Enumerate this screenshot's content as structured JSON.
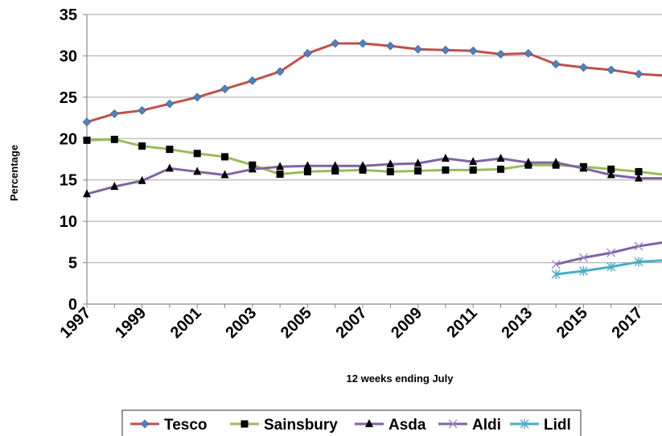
{
  "chart_data": {
    "type": "line",
    "xlabel": "12 weeks ending July",
    "ylabel": "Percentage",
    "ylim": [
      0,
      35
    ],
    "yticks": [
      "0",
      "5",
      "10",
      "15",
      "20",
      "25",
      "30",
      "35"
    ],
    "xticks": [
      "1997",
      "1999",
      "2001",
      "2003",
      "2005",
      "2007",
      "2009",
      "2011",
      "2013",
      "2015",
      "2017"
    ],
    "grid": "horizontal",
    "legend_position": "bottom",
    "series": [
      {
        "name": "Tesco",
        "color": "#c0504d",
        "marker": "diamond",
        "marker_color": "#4f81bd",
        "points": [
          [
            1997,
            22.0
          ],
          [
            1998,
            23.0
          ],
          [
            1999,
            23.4
          ],
          [
            2000,
            24.2
          ],
          [
            2001,
            25.0
          ],
          [
            2002,
            26.0
          ],
          [
            2003,
            27.0
          ],
          [
            2004,
            28.1
          ],
          [
            2005,
            30.3
          ],
          [
            2006,
            31.5
          ],
          [
            2007,
            31.5
          ],
          [
            2008,
            31.2
          ],
          [
            2009,
            30.8
          ],
          [
            2010,
            30.7
          ],
          [
            2011,
            30.6
          ],
          [
            2012,
            30.2
          ],
          [
            2013,
            30.3
          ],
          [
            2014,
            29.0
          ],
          [
            2015,
            28.6
          ],
          [
            2016,
            28.3
          ],
          [
            2017,
            27.8
          ],
          [
            2018,
            27.6
          ]
        ]
      },
      {
        "name": "Sainsbury",
        "color": "#9bbb59",
        "marker": "square",
        "marker_color": "#000000",
        "points": [
          [
            1997,
            19.8
          ],
          [
            1998,
            19.9
          ],
          [
            1999,
            19.1
          ],
          [
            2000,
            18.7
          ],
          [
            2001,
            18.2
          ],
          [
            2002,
            17.8
          ],
          [
            2003,
            16.8
          ],
          [
            2004,
            15.7
          ],
          [
            2005,
            16.0
          ],
          [
            2006,
            16.1
          ],
          [
            2007,
            16.2
          ],
          [
            2008,
            16.0
          ],
          [
            2009,
            16.1
          ],
          [
            2010,
            16.2
          ],
          [
            2011,
            16.2
          ],
          [
            2012,
            16.3
          ],
          [
            2013,
            16.8
          ],
          [
            2014,
            16.8
          ],
          [
            2015,
            16.6
          ],
          [
            2016,
            16.3
          ],
          [
            2017,
            16.0
          ],
          [
            2018,
            15.6
          ]
        ]
      },
      {
        "name": "Asda",
        "color": "#8064a2",
        "marker": "triangle",
        "marker_color": "#000000",
        "points": [
          [
            1997,
            13.3
          ],
          [
            1998,
            14.2
          ],
          [
            1999,
            14.9
          ],
          [
            2000,
            16.4
          ],
          [
            2001,
            16.0
          ],
          [
            2002,
            15.6
          ],
          [
            2003,
            16.3
          ],
          [
            2004,
            16.6
          ],
          [
            2005,
            16.7
          ],
          [
            2006,
            16.7
          ],
          [
            2007,
            16.7
          ],
          [
            2008,
            16.9
          ],
          [
            2009,
            17.0
          ],
          [
            2010,
            17.6
          ],
          [
            2011,
            17.2
          ],
          [
            2012,
            17.6
          ],
          [
            2013,
            17.1
          ],
          [
            2014,
            17.1
          ],
          [
            2015,
            16.4
          ],
          [
            2016,
            15.6
          ],
          [
            2017,
            15.2
          ],
          [
            2018,
            15.2
          ]
        ]
      },
      {
        "name": "Aldi",
        "color": "#8064a2",
        "marker": "x",
        "marker_color": "#a28ec3",
        "points": [
          [
            2014,
            4.8
          ],
          [
            2015,
            5.6
          ],
          [
            2016,
            6.2
          ],
          [
            2017,
            7.0
          ],
          [
            2018,
            7.5
          ]
        ]
      },
      {
        "name": "Lidl",
        "color": "#4bacc6",
        "marker": "star",
        "marker_color": "#4bacc6",
        "points": [
          [
            2014,
            3.6
          ],
          [
            2015,
            4.0
          ],
          [
            2016,
            4.5
          ],
          [
            2017,
            5.1
          ],
          [
            2018,
            5.3
          ]
        ]
      }
    ]
  }
}
